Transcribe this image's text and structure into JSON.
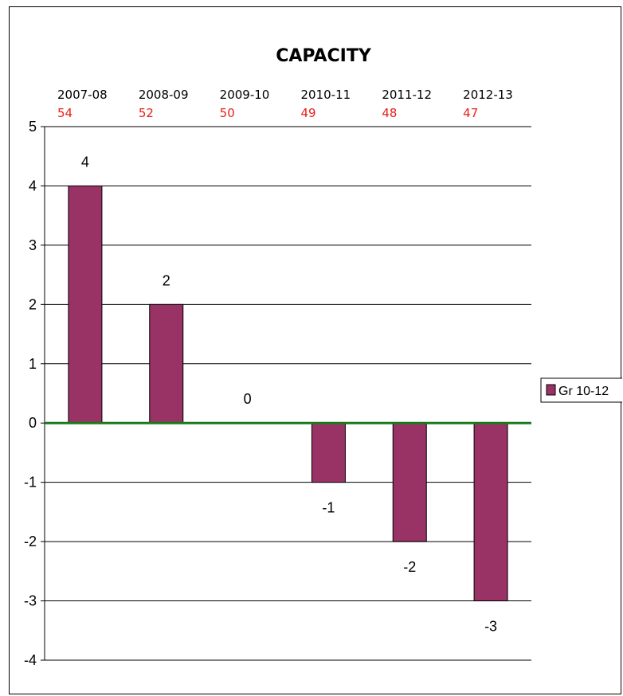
{
  "chart_data": {
    "type": "bar",
    "title": "CAPACITY",
    "categories": [
      "2007-08",
      "2008-09",
      "2009-10",
      "2010-11",
      "2011-12",
      "2012-13"
    ],
    "category_sublabels": [
      "54",
      "52",
      "50",
      "49",
      "48",
      "47"
    ],
    "series": [
      {
        "name": "Gr 10-12",
        "values": [
          4,
          2,
          0,
          -1,
          -2,
          -3
        ],
        "color": "#993366"
      }
    ],
    "ylim": [
      -4,
      5
    ],
    "yticks": [
      5,
      4,
      3,
      2,
      1,
      0,
      -1,
      -2,
      -3,
      -4
    ],
    "grid": true,
    "zero_line_color": "#1a7a1a",
    "sublabel_color": "#e8201a",
    "legend": "right"
  }
}
